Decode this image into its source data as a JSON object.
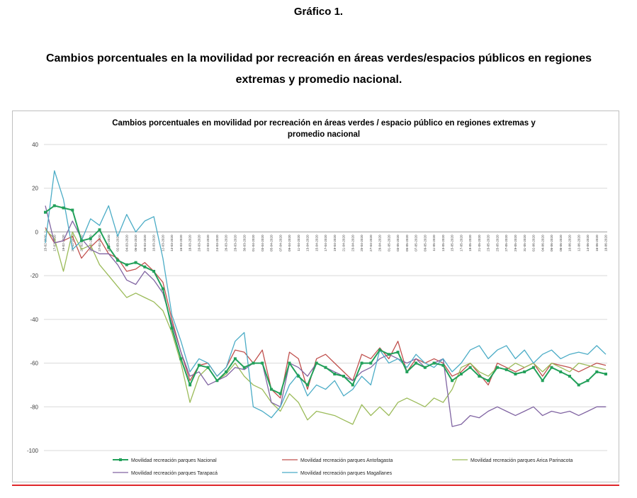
{
  "document": {
    "heading": "Gráfico 1.",
    "subtitle": "Cambios porcentuales en la movilidad por recreación en áreas verdes/espacios públicos en regiones extremas y promedio nacional."
  },
  "chart_data": {
    "type": "line",
    "title": "Cambios porcentuales en movilidad por recreación en áreas verdes / espacio público en regiones extremas y promedio nacional",
    "ylim": [
      -100,
      40
    ],
    "yticks": [
      40,
      20,
      0,
      -20,
      -40,
      -60,
      -80,
      -100
    ],
    "grid": true,
    "legend_position": "bottom",
    "x": [
      "15-02-2020",
      "17-02-2020",
      "19-02-2020",
      "21-02-2020",
      "23-02-2020",
      "25-02-2020",
      "27-02-2020",
      "29-02-2020",
      "02-03-2020",
      "04-03-2020",
      "06-03-2020",
      "08-03-2020",
      "10-03-2020",
      "12-03-2020",
      "14-03-2020",
      "16-03-2020",
      "18-03-2020",
      "20-03-2020",
      "22-03-2020",
      "24-03-2020",
      "26-03-2020",
      "28-03-2020",
      "30-03-2020",
      "01-04-2020",
      "03-04-2020",
      "05-04-2020",
      "07-04-2020",
      "09-04-2020",
      "11-04-2020",
      "13-04-2020",
      "15-04-2020",
      "17-04-2020",
      "19-04-2020",
      "21-04-2020",
      "23-04-2020",
      "25-04-2020",
      "27-04-2020",
      "29-04-2020",
      "01-05-2020",
      "03-05-2020",
      "05-05-2020",
      "07-05-2020",
      "09-05-2020",
      "11-05-2020",
      "13-05-2020",
      "15-05-2020",
      "17-05-2020",
      "19-05-2020",
      "21-05-2020",
      "23-05-2020",
      "25-05-2020",
      "27-05-2020",
      "29-05-2020",
      "31-05-2020",
      "02-06-2020",
      "04-06-2020",
      "06-06-2020",
      "08-06-2020",
      "10-06-2020",
      "12-06-2020",
      "14-06-2020",
      "16-06-2020",
      "18-06-2020"
    ],
    "series": [
      {
        "name": "Movilidad recreación parques Nacional",
        "color": "#22a05a",
        "marker": "square",
        "values": [
          9,
          12,
          11,
          10,
          -4,
          -3,
          1,
          -7,
          -13,
          -15,
          -14,
          -16,
          -18,
          -26,
          -44,
          -58,
          -70,
          -61,
          -62,
          -68,
          -64,
          -58,
          -62,
          -60,
          -60,
          -72,
          -74,
          -60,
          -66,
          -70,
          -60,
          -62,
          -65,
          -66,
          -70,
          -60,
          -60,
          -54,
          -56,
          -55,
          -64,
          -60,
          -62,
          -60,
          -61,
          -68,
          -65,
          -62,
          -66,
          -68,
          -62,
          -63,
          -65,
          -64,
          -62,
          -68,
          -62,
          -64,
          -66,
          -70,
          -68,
          -64,
          -65
        ]
      },
      {
        "name": "Movilidad recreación parques Antofagasta",
        "color": "#c0504d",
        "marker": "none",
        "values": [
          2,
          -5,
          -4,
          -2,
          -12,
          -7,
          -3,
          -10,
          -12,
          -18,
          -17,
          -14,
          -18,
          -23,
          -40,
          -55,
          -68,
          -61,
          -60,
          -66,
          -62,
          -54,
          -55,
          -60,
          -54,
          -72,
          -76,
          -55,
          -58,
          -72,
          -58,
          -56,
          -60,
          -64,
          -68,
          -56,
          -58,
          -53,
          -58,
          -50,
          -64,
          -58,
          -60,
          -58,
          -60,
          -66,
          -64,
          -60,
          -65,
          -70,
          -60,
          -62,
          -64,
          -62,
          -60,
          -66,
          -60,
          -61,
          -62,
          -64,
          -62,
          -60,
          -61
        ]
      },
      {
        "name": "Movilidad recreación parques Arica Parinacota",
        "color": "#9bbb59",
        "marker": "none",
        "values": [
          1,
          -3,
          -18,
          0,
          -8,
          -6,
          -15,
          -20,
          -25,
          -30,
          -28,
          -30,
          -32,
          -36,
          -46,
          -60,
          -78,
          -66,
          -62,
          -68,
          -65,
          -60,
          -66,
          -70,
          -72,
          -78,
          -82,
          -74,
          -78,
          -86,
          -82,
          -83,
          -84,
          -86,
          -88,
          -79,
          -84,
          -80,
          -84,
          -78,
          -76,
          -78,
          -80,
          -76,
          -78,
          -72,
          -62,
          -60,
          -64,
          -66,
          -62,
          -63,
          -60,
          -62,
          -60,
          -64,
          -60,
          -62,
          -64,
          -60,
          -61,
          -62,
          -63
        ]
      },
      {
        "name": "Movilidad recreación parques Tarapacá",
        "color": "#8064a2",
        "marker": "none",
        "values": [
          12,
          -5,
          -4,
          5,
          -3,
          -8,
          -10,
          -10,
          -15,
          -22,
          -24,
          -18,
          -22,
          -28,
          -42,
          -55,
          -66,
          -64,
          -70,
          -68,
          -66,
          -62,
          -63,
          -60,
          -60,
          -78,
          -80,
          -60,
          -62,
          -66,
          -60,
          -62,
          -64,
          -66,
          -68,
          -64,
          -62,
          -58,
          -56,
          -58,
          -60,
          -58,
          -62,
          -60,
          -58,
          -89,
          -88,
          -84,
          -85,
          -82,
          -80,
          -82,
          -84,
          -82,
          -80,
          -84,
          -82,
          -83,
          -82,
          -84,
          -82,
          -80,
          -80
        ]
      },
      {
        "name": "Movilidad recreación parques Magallanes",
        "color": "#4bacc6",
        "marker": "none",
        "values": [
          -5,
          28,
          15,
          -8,
          -4,
          6,
          3,
          12,
          -2,
          8,
          0,
          5,
          7,
          -12,
          -38,
          -50,
          -64,
          -58,
          -60,
          -66,
          -62,
          -50,
          -46,
          -80,
          -82,
          -85,
          -80,
          -70,
          -65,
          -75,
          -70,
          -72,
          -68,
          -75,
          -72,
          -66,
          -70,
          -54,
          -60,
          -58,
          -62,
          -56,
          -60,
          -62,
          -58,
          -64,
          -60,
          -54,
          -52,
          -58,
          -54,
          -52,
          -58,
          -54,
          -60,
          -56,
          -54,
          -58,
          -56,
          -55,
          -56,
          -52,
          -56
        ]
      }
    ]
  }
}
